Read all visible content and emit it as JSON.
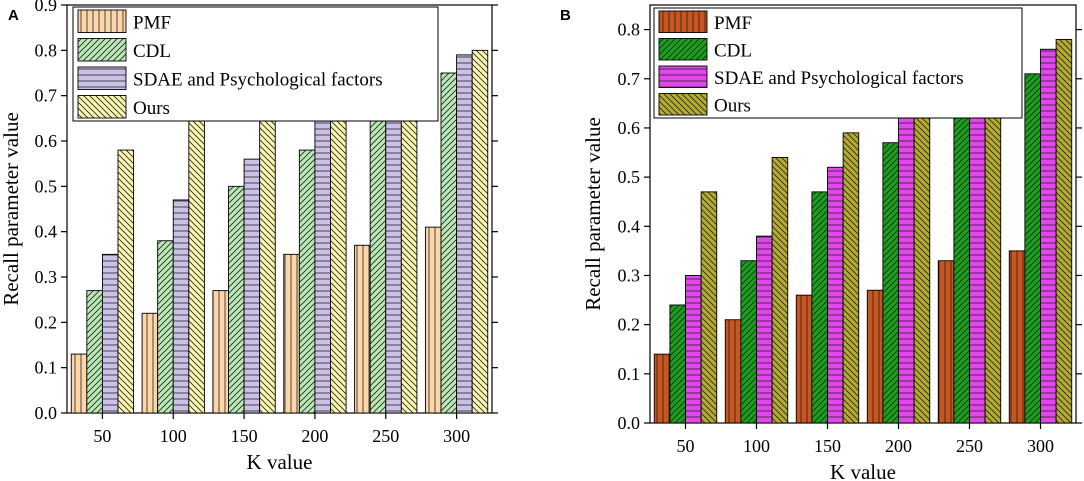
{
  "chart_data": [
    {
      "panel": "A",
      "type": "bar",
      "categories": [
        "50",
        "100",
        "150",
        "200",
        "250",
        "300"
      ],
      "series": [
        {
          "name": "PMF",
          "values": [
            0.13,
            0.22,
            0.27,
            0.35,
            0.37,
            0.41
          ],
          "color": "#fcd6a8",
          "hatch": "vertical"
        },
        {
          "name": "CDL",
          "values": [
            0.27,
            0.38,
            0.5,
            0.58,
            0.68,
            0.75
          ],
          "color": "#b9e8b4",
          "hatch": "diagonal-right"
        },
        {
          "name": "SDAE and Psychological factors",
          "values": [
            0.35,
            0.47,
            0.56,
            0.67,
            0.73,
            0.79
          ],
          "color": "#cbc0e6",
          "hatch": "horizontal"
        },
        {
          "name": "Ours",
          "values": [
            0.58,
            0.66,
            0.68,
            0.73,
            0.75,
            0.8
          ],
          "color": "#fbf7b0",
          "hatch": "diagonal-left"
        }
      ],
      "title": "",
      "xlabel": "K value",
      "ylabel": "Recall parameter value",
      "ylim": [
        0,
        0.9
      ],
      "yticks": [
        "0.0",
        "0.1",
        "0.2",
        "0.3",
        "0.4",
        "0.5",
        "0.6",
        "0.7",
        "0.8",
        "0.9"
      ],
      "legend_position": "top-left"
    },
    {
      "panel": "B",
      "type": "bar",
      "categories": [
        "50",
        "100",
        "150",
        "200",
        "250",
        "300"
      ],
      "series": [
        {
          "name": "PMF",
          "values": [
            0.14,
            0.21,
            0.26,
            0.27,
            0.33,
            0.35
          ],
          "color": "#c8561e",
          "hatch": "vertical"
        },
        {
          "name": "CDL",
          "values": [
            0.24,
            0.33,
            0.47,
            0.57,
            0.65,
            0.71
          ],
          "color": "#19a11c",
          "hatch": "diagonal-right"
        },
        {
          "name": "SDAE and Psychological factors",
          "values": [
            0.3,
            0.38,
            0.52,
            0.65,
            0.71,
            0.76
          ],
          "color": "#e346ec",
          "hatch": "horizontal"
        },
        {
          "name": "Ours",
          "values": [
            0.47,
            0.54,
            0.59,
            0.67,
            0.72,
            0.78
          ],
          "color": "#b5ac2b",
          "hatch": "diagonal-left"
        }
      ],
      "title": "",
      "xlabel": "K value",
      "ylabel": "Recall parameter value",
      "ylim": [
        0,
        0.85
      ],
      "yticks": [
        "0.0",
        "0.1",
        "0.2",
        "0.3",
        "0.4",
        "0.5",
        "0.6",
        "0.7",
        "0.8"
      ],
      "legend_position": "top-left"
    }
  ]
}
